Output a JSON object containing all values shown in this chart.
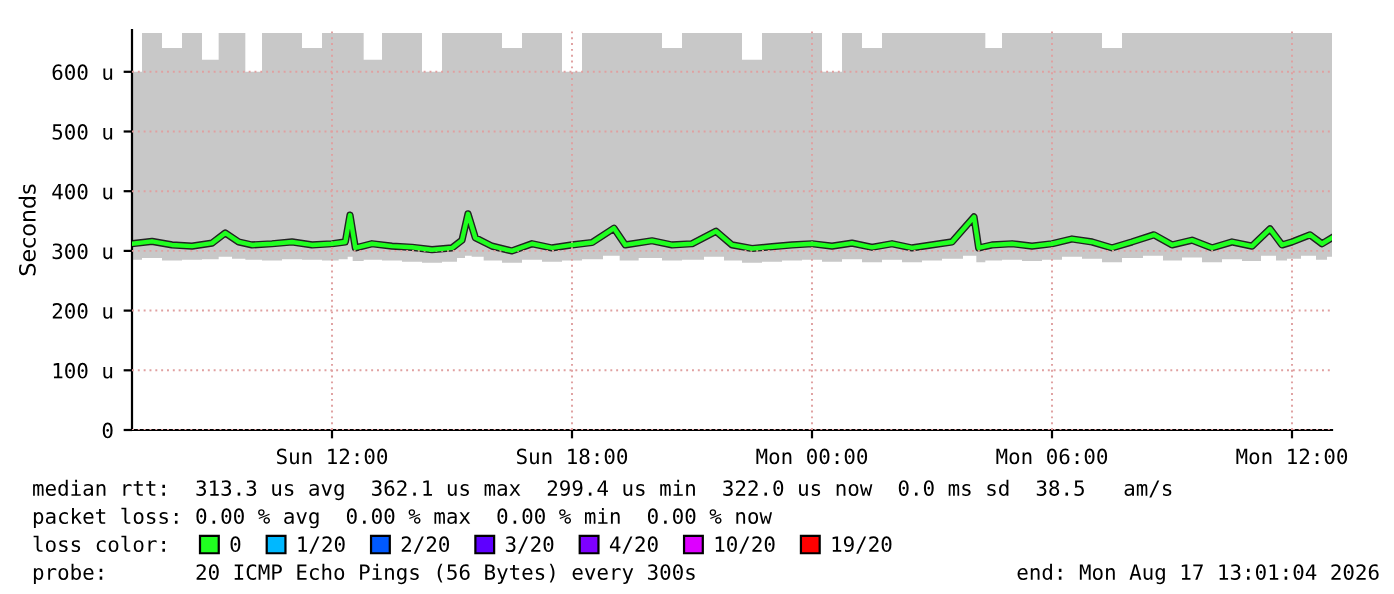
{
  "chart_data": {
    "type": "line",
    "ylabel": "Seconds",
    "x": [
      "2026-08-16T07:00",
      "2026-08-16T07:30",
      "2026-08-16T08:00",
      "2026-08-16T08:30",
      "2026-08-16T09:00",
      "2026-08-16T09:20",
      "2026-08-16T09:40",
      "2026-08-16T10:00",
      "2026-08-16T10:30",
      "2026-08-16T11:00",
      "2026-08-16T11:30",
      "2026-08-16T12:00",
      "2026-08-16T12:20",
      "2026-08-16T12:27",
      "2026-08-16T12:35",
      "2026-08-16T13:00",
      "2026-08-16T13:30",
      "2026-08-16T14:00",
      "2026-08-16T14:30",
      "2026-08-16T15:00",
      "2026-08-16T15:15",
      "2026-08-16T15:24",
      "2026-08-16T15:35",
      "2026-08-16T16:00",
      "2026-08-16T16:30",
      "2026-08-16T17:00",
      "2026-08-16T17:30",
      "2026-08-16T18:00",
      "2026-08-16T18:30",
      "2026-08-16T19:03",
      "2026-08-16T19:20",
      "2026-08-16T20:00",
      "2026-08-16T20:30",
      "2026-08-16T21:00",
      "2026-08-16T21:36",
      "2026-08-16T22:00",
      "2026-08-16T22:30",
      "2026-08-16T23:00",
      "2026-08-16T23:30",
      "2026-08-17T00:00",
      "2026-08-17T00:30",
      "2026-08-17T01:00",
      "2026-08-17T01:30",
      "2026-08-17T02:00",
      "2026-08-17T02:30",
      "2026-08-17T03:00",
      "2026-08-17T03:30",
      "2026-08-17T04:03",
      "2026-08-17T04:10",
      "2026-08-17T04:30",
      "2026-08-17T05:00",
      "2026-08-17T05:30",
      "2026-08-17T06:00",
      "2026-08-17T06:30",
      "2026-08-17T07:00",
      "2026-08-17T07:30",
      "2026-08-17T08:00",
      "2026-08-17T08:33",
      "2026-08-17T09:00",
      "2026-08-17T09:30",
      "2026-08-17T10:00",
      "2026-08-17T10:30",
      "2026-08-17T11:00",
      "2026-08-17T11:27",
      "2026-08-17T11:45",
      "2026-08-17T12:00",
      "2026-08-17T12:27",
      "2026-08-17T12:45",
      "2026-08-17T13:00"
    ],
    "series": [
      {
        "name": "0",
        "color": "#20ff20",
        "values": [
          312,
          316,
          310,
          308,
          313,
          330,
          315,
          310,
          312,
          315,
          310,
          312,
          315,
          360,
          305,
          312,
          308,
          306,
          302,
          305,
          318,
          362,
          322,
          308,
          300,
          312,
          305,
          310,
          314,
          338,
          310,
          317,
          310,
          312,
          333,
          310,
          304,
          307,
          310,
          312,
          308,
          313,
          306,
          312,
          305,
          310,
          315,
          357,
          305,
          310,
          312,
          308,
          312,
          320,
          315,
          305,
          315,
          327,
          310,
          318,
          305,
          315,
          308,
          337,
          310,
          315,
          327,
          312,
          322
        ],
        "lower": [
          285,
          288,
          284,
          285,
          286,
          290,
          287,
          285,
          284,
          286,
          285,
          284,
          286,
          290,
          283,
          285,
          284,
          282,
          280,
          282,
          288,
          292,
          290,
          284,
          280,
          285,
          282,
          284,
          286,
          292,
          284,
          288,
          284,
          285,
          290,
          284,
          280,
          282,
          284,
          285,
          282,
          286,
          281,
          285,
          281,
          284,
          287,
          292,
          281,
          284,
          285,
          283,
          285,
          290,
          287,
          281,
          288,
          292,
          284,
          289,
          281,
          286,
          283,
          292,
          284,
          287,
          292,
          285,
          290
        ],
        "upper": [
          600,
          665,
          640,
          665,
          620,
          665,
          665,
          600,
          665,
          665,
          640,
          665,
          665,
          665,
          665,
          620,
          665,
          665,
          600,
          665,
          665,
          665,
          665,
          665,
          640,
          665,
          665,
          600,
          665,
          665,
          665,
          665,
          640,
          665,
          665,
          665,
          620,
          665,
          665,
          665,
          600,
          665,
          640,
          665,
          665,
          665,
          665,
          665,
          665,
          640,
          665,
          665,
          665,
          665,
          665,
          640,
          665,
          665,
          665,
          665,
          665,
          665,
          665,
          665,
          665,
          665,
          665,
          665,
          665
        ]
      },
      {
        "name": "1/20",
        "color": "#00b8ff",
        "values": [
          null,
          null,
          null,
          null,
          null,
          null,
          null,
          null,
          null,
          null,
          null,
          null,
          null,
          null,
          null,
          null,
          null,
          null,
          null,
          null,
          null,
          null,
          null,
          null,
          null,
          null,
          null,
          null,
          null,
          null,
          null,
          null,
          null,
          null,
          null,
          null,
          null,
          null,
          null,
          null,
          null,
          null,
          null,
          null,
          null,
          null,
          null,
          null,
          null,
          null,
          null,
          null,
          null,
          null,
          null,
          null,
          null,
          null,
          null,
          null,
          null,
          null,
          null,
          null,
          null,
          null,
          null,
          null,
          null
        ]
      },
      {
        "name": "2/20",
        "color": "#0059ff",
        "values": [
          null,
          null,
          null,
          null,
          null,
          null,
          null,
          null,
          null,
          null,
          null,
          null,
          null,
          null,
          null,
          null,
          null,
          null,
          null,
          null,
          null,
          null,
          null,
          null,
          null,
          null,
          null,
          null,
          null,
          null,
          null,
          null,
          null,
          null,
          null,
          null,
          null,
          null,
          null,
          null,
          null,
          null,
          null,
          null,
          null,
          null,
          null,
          null,
          null,
          null,
          null,
          null,
          null,
          null,
          null,
          null,
          null,
          null,
          null,
          null,
          null,
          null,
          null,
          null,
          null,
          null,
          null,
          null,
          null
        ]
      },
      {
        "name": "3/20",
        "color": "#5e00ff",
        "values": [
          null,
          null,
          null,
          null,
          null,
          null,
          null,
          null,
          null,
          null,
          null,
          null,
          null,
          null,
          null,
          null,
          null,
          null,
          null,
          null,
          null,
          null,
          null,
          null,
          null,
          null,
          null,
          null,
          null,
          null,
          null,
          null,
          null,
          null,
          null,
          null,
          null,
          null,
          null,
          null,
          null,
          null,
          null,
          null,
          null,
          null,
          null,
          null,
          null,
          null,
          null,
          null,
          null,
          null,
          null,
          null,
          null,
          null,
          null,
          null,
          null,
          null,
          null,
          null,
          null,
          null,
          null,
          null,
          null
        ]
      },
      {
        "name": "4/20",
        "color": "#7e00ff",
        "values": [
          null,
          null,
          null,
          null,
          null,
          null,
          null,
          null,
          null,
          null,
          null,
          null,
          null,
          null,
          null,
          null,
          null,
          null,
          null,
          null,
          null,
          null,
          null,
          null,
          null,
          null,
          null,
          null,
          null,
          null,
          null,
          null,
          null,
          null,
          null,
          null,
          null,
          null,
          null,
          null,
          null,
          null,
          null,
          null,
          null,
          null,
          null,
          null,
          null,
          null,
          null,
          null,
          null,
          null,
          null,
          null,
          null,
          null,
          null,
          null,
          null,
          null,
          null,
          null,
          null,
          null,
          null,
          null,
          null
        ]
      },
      {
        "name": "10/20",
        "color": "#dd00ff",
        "values": [
          null,
          null,
          null,
          null,
          null,
          null,
          null,
          null,
          null,
          null,
          null,
          null,
          null,
          null,
          null,
          null,
          null,
          null,
          null,
          null,
          null,
          null,
          null,
          null,
          null,
          null,
          null,
          null,
          null,
          null,
          null,
          null,
          null,
          null,
          null,
          null,
          null,
          null,
          null,
          null,
          null,
          null,
          null,
          null,
          null,
          null,
          null,
          null,
          null,
          null,
          null,
          null,
          null,
          null,
          null,
          null,
          null,
          null,
          null,
          null,
          null,
          null,
          null,
          null,
          null,
          null,
          null,
          null,
          null
        ]
      },
      {
        "name": "19/20",
        "color": "#ff0000",
        "values": [
          null,
          null,
          null,
          null,
          null,
          null,
          null,
          null,
          null,
          null,
          null,
          null,
          null,
          null,
          null,
          null,
          null,
          null,
          null,
          null,
          null,
          null,
          null,
          null,
          null,
          null,
          null,
          null,
          null,
          null,
          null,
          null,
          null,
          null,
          null,
          null,
          null,
          null,
          null,
          null,
          null,
          null,
          null,
          null,
          null,
          null,
          null,
          null,
          null,
          null,
          null,
          null,
          null,
          null,
          null,
          null,
          null,
          null,
          null,
          null,
          null,
          null,
          null,
          null,
          null,
          null,
          null,
          null,
          null
        ]
      }
    ],
    "xlim": [
      "2026-08-16T07:00",
      "2026-08-17T13:00"
    ],
    "xticks": [
      {
        "value": "2026-08-16T12:00",
        "label": "Sun 12:00"
      },
      {
        "value": "2026-08-16T18:00",
        "label": "Sun 18:00"
      },
      {
        "value": "2026-08-17T00:00",
        "label": "Mon 00:00"
      },
      {
        "value": "2026-08-17T06:00",
        "label": "Mon 06:00"
      },
      {
        "value": "2026-08-17T12:00",
        "label": "Mon 12:00"
      }
    ],
    "ylim": [
      0,
      670
    ],
    "yticks": [
      0,
      {
        "value": 100,
        "label": "100 u"
      },
      {
        "value": 200,
        "label": "200 u"
      },
      {
        "value": 300,
        "label": "300 u"
      },
      {
        "value": 400,
        "label": "400 u"
      },
      {
        "value": 500,
        "label": "500 u"
      },
      {
        "value": 600,
        "label": "600 u"
      }
    ],
    "grid": true,
    "legend": "bottom",
    "annotations": [
      "median rtt:  313.3 us avg  362.1 us max  299.4 us min  322.0 us now  0.0 ms sd  38.5   am/s",
      "packet loss: 0.00 % avg  0.00 % max  0.00 % min  0.00 % now",
      "loss color:",
      "probe:       20 ICMP Echo Pings (56 Bytes) every 300s",
      "end: Mon Aug 17 13:01:04 2026"
    ]
  }
}
